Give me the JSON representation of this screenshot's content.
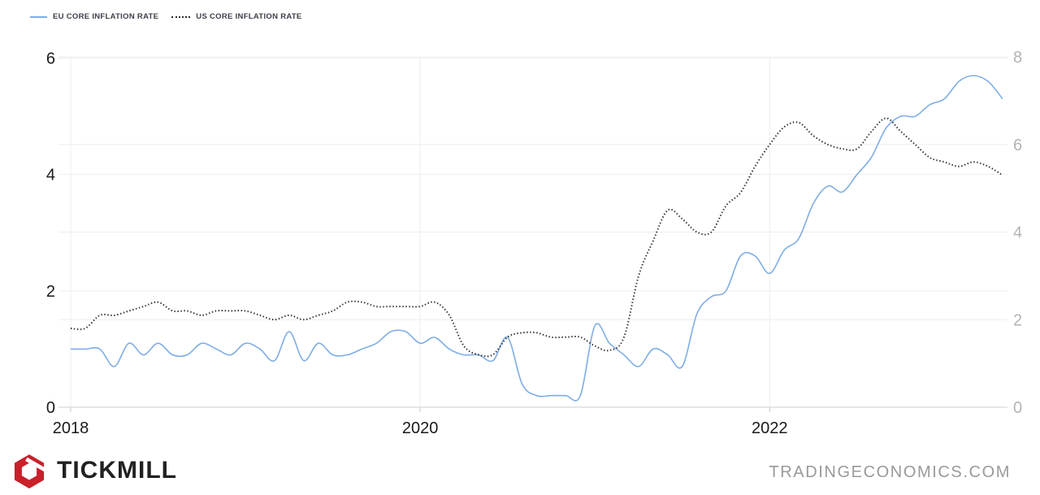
{
  "legend": {
    "items": [
      {
        "label": "EU CORE INFLATION RATE",
        "style": "solid",
        "color": "#7fade6"
      },
      {
        "label": "US CORE INFLATION RATE",
        "style": "dotted",
        "color": "#2e2e2e"
      }
    ]
  },
  "footer": {
    "brand": "TICKMILL",
    "source": "TRADINGECONOMICS.COM"
  },
  "colors": {
    "eu_line": "#7fade6",
    "us_line": "#2e2e2e",
    "grid": "#ededed",
    "axis_line": "#cfcfcf",
    "tick": "#c9c9c9",
    "axis_text_dark": "#1a1a1a",
    "axis_text_right": "#b4b4b4",
    "brand_red": "#c9202a",
    "source_gray": "#9a9a9a"
  },
  "chart_data": {
    "type": "line",
    "title": "",
    "x_start": "2018-01",
    "x_end": "2023-05",
    "x_tick_labels": [
      "2018",
      "2020",
      "2022"
    ],
    "x_tick_month_index": [
      0,
      24,
      48
    ],
    "grid": true,
    "legend_position": "top-left",
    "left_axis": {
      "ticks": [
        0,
        2,
        4,
        6
      ],
      "range": [
        0,
        6
      ],
      "series": "EU CORE INFLATION RATE"
    },
    "right_axis": {
      "ticks": [
        0,
        2,
        4,
        6,
        8
      ],
      "range": [
        0,
        8
      ],
      "series": "US CORE INFLATION RATE"
    },
    "series": [
      {
        "name": "EU CORE INFLATION RATE",
        "axis": "left",
        "color": "#7fade6",
        "line_style": "solid",
        "values": [
          1.0,
          1.0,
          1.0,
          0.7,
          1.1,
          0.9,
          1.1,
          0.9,
          0.9,
          1.1,
          1.0,
          0.9,
          1.1,
          1.0,
          0.8,
          1.3,
          0.8,
          1.1,
          0.9,
          0.9,
          1.0,
          1.1,
          1.3,
          1.3,
          1.1,
          1.2,
          1.0,
          0.9,
          0.9,
          0.8,
          1.2,
          0.4,
          0.2,
          0.2,
          0.2,
          0.2,
          1.4,
          1.1,
          0.9,
          0.7,
          1.0,
          0.9,
          0.7,
          1.6,
          1.9,
          2.0,
          2.6,
          2.6,
          2.3,
          2.7,
          2.9,
          3.5,
          3.8,
          3.7,
          4.0,
          4.3,
          4.8,
          5.0,
          5.0,
          5.2,
          5.3,
          5.6,
          5.7,
          5.6,
          5.3
        ]
      },
      {
        "name": "US CORE INFLATION RATE",
        "axis": "right",
        "color": "#2e2e2e",
        "line_style": "dotted",
        "values": [
          1.8,
          1.8,
          2.1,
          2.1,
          2.2,
          2.3,
          2.4,
          2.2,
          2.2,
          2.1,
          2.2,
          2.2,
          2.2,
          2.1,
          2.0,
          2.1,
          2.0,
          2.1,
          2.2,
          2.4,
          2.4,
          2.3,
          2.3,
          2.3,
          2.3,
          2.4,
          2.1,
          1.4,
          1.2,
          1.2,
          1.6,
          1.7,
          1.7,
          1.6,
          1.6,
          1.6,
          1.4,
          1.3,
          1.6,
          3.0,
          3.8,
          4.5,
          4.3,
          4.0,
          4.0,
          4.6,
          4.9,
          5.5,
          6.0,
          6.4,
          6.5,
          6.2,
          6.0,
          5.9,
          5.9,
          6.3,
          6.6,
          6.3,
          6.0,
          5.7,
          5.6,
          5.5,
          5.6,
          5.5,
          5.3
        ]
      }
    ]
  }
}
